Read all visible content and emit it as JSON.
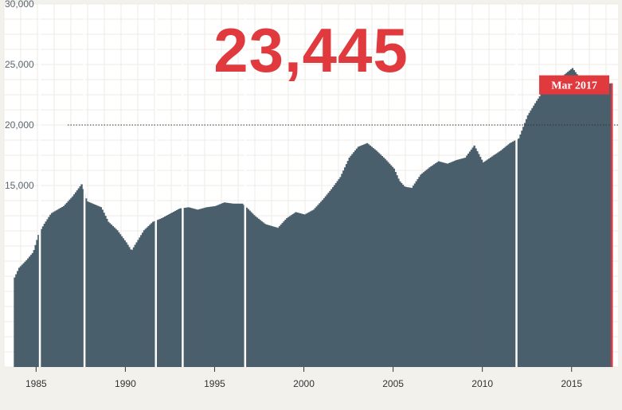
{
  "headline_value": "23,445",
  "colors": {
    "bar": "#4a5f6c",
    "accent": "#e0393e",
    "background": "#f3f1ec",
    "plot_background": "#ffffff",
    "grid": "#ecebe6"
  },
  "chart_data": {
    "type": "bar",
    "title": "",
    "xlabel": "",
    "ylabel": "",
    "xlim": [
      1983.2,
      2017.6
    ],
    "ylim": [
      0,
      30000
    ],
    "grid": true,
    "y_ticks": [
      {
        "value": 15000,
        "label": "15,000"
      },
      {
        "value": 20000,
        "label": "20,000"
      },
      {
        "value": 25000,
        "label": "25,000"
      },
      {
        "value": 30000,
        "label": "30,000"
      }
    ],
    "x_ticks": [
      {
        "value": 1985,
        "label": "1985"
      },
      {
        "value": 1990,
        "label": "1990"
      },
      {
        "value": 1995,
        "label": "1995"
      },
      {
        "value": 2000,
        "label": "2000"
      },
      {
        "value": 2005,
        "label": "2005"
      },
      {
        "value": 2010,
        "label": "2010"
      },
      {
        "value": 2015,
        "label": "2015"
      }
    ],
    "reference_line": {
      "value": 20000,
      "style": "dotted"
    },
    "highlight": {
      "label": "Mar 2017",
      "x": 2017.2,
      "value": 23445
    },
    "series_points": [
      [
        1983.75,
        7400
      ],
      [
        1984.0,
        8200
      ],
      [
        1984.4,
        8800
      ],
      [
        1984.8,
        9500
      ],
      [
        1985.1,
        11000
      ],
      [
        1985.4,
        11800
      ],
      [
        1985.8,
        12700
      ],
      [
        1986.5,
        13300
      ],
      [
        1987.0,
        14100
      ],
      [
        1987.5,
        15100
      ],
      [
        1987.8,
        13700
      ],
      [
        1988.6,
        13200
      ],
      [
        1989.0,
        12000
      ],
      [
        1989.5,
        11300
      ],
      [
        1990.0,
        10300
      ],
      [
        1990.3,
        9600
      ],
      [
        1990.5,
        10100
      ],
      [
        1991.0,
        11300
      ],
      [
        1991.5,
        12000
      ],
      [
        1992.0,
        12300
      ],
      [
        1992.5,
        12700
      ],
      [
        1993.0,
        13100
      ],
      [
        1993.5,
        13200
      ],
      [
        1994.0,
        13000
      ],
      [
        1994.5,
        13200
      ],
      [
        1995.0,
        13300
      ],
      [
        1995.5,
        13600
      ],
      [
        1996.0,
        13500
      ],
      [
        1996.5,
        13500
      ],
      [
        1996.8,
        13100
      ],
      [
        1997.2,
        12500
      ],
      [
        1997.8,
        11800
      ],
      [
        1998.5,
        11500
      ],
      [
        1999.0,
        12300
      ],
      [
        1999.5,
        12800
      ],
      [
        2000.0,
        12600
      ],
      [
        2000.5,
        13000
      ],
      [
        2001.0,
        13800
      ],
      [
        2001.5,
        14700
      ],
      [
        2002.0,
        15700
      ],
      [
        2002.5,
        17300
      ],
      [
        2003.0,
        18200
      ],
      [
        2003.5,
        18500
      ],
      [
        2004.0,
        17900
      ],
      [
        2004.5,
        17200
      ],
      [
        2005.0,
        16400
      ],
      [
        2005.3,
        15400
      ],
      [
        2005.6,
        14900
      ],
      [
        2006.0,
        14800
      ],
      [
        2006.5,
        15900
      ],
      [
        2007.0,
        16500
      ],
      [
        2007.5,
        17000
      ],
      [
        2008.0,
        16800
      ],
      [
        2008.5,
        17100
      ],
      [
        2009.0,
        17300
      ],
      [
        2009.5,
        18300
      ],
      [
        2010.0,
        16900
      ],
      [
        2010.5,
        17400
      ],
      [
        2011.0,
        17900
      ],
      [
        2011.5,
        18500
      ],
      [
        2012.0,
        18900
      ],
      [
        2012.5,
        20800
      ],
      [
        2013.0,
        22000
      ],
      [
        2013.5,
        23100
      ],
      [
        2014.0,
        23600
      ],
      [
        2014.5,
        24100
      ],
      [
        2015.0,
        24700
      ],
      [
        2015.5,
        23700
      ],
      [
        2016.0,
        23500
      ],
      [
        2016.5,
        23400
      ],
      [
        2017.2,
        23445
      ]
    ],
    "gaps": [
      1985.2,
      1987.7,
      1991.7,
      1993.2,
      1996.7,
      2011.9
    ]
  }
}
